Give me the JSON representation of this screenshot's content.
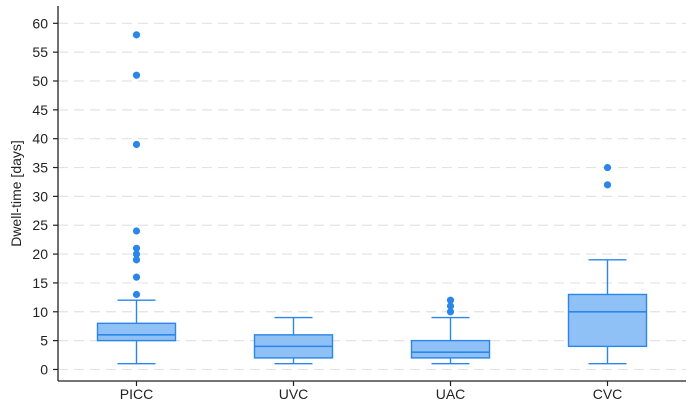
{
  "chart_data": {
    "type": "box",
    "ylabel": "Dwell-time [days]",
    "xlabel": "",
    "ylim": [
      -2,
      63
    ],
    "yticks": [
      0,
      5,
      10,
      15,
      20,
      25,
      30,
      35,
      40,
      45,
      50,
      55,
      60
    ],
    "grid": "horizontal dashed",
    "categories": [
      "PICC",
      "UVC",
      "UAC",
      "CVC"
    ],
    "boxes": [
      {
        "category": "PICC",
        "whisker_low": 1,
        "q1": 5,
        "median": 6,
        "q3": 8,
        "whisker_high": 12,
        "outliers": [
          13,
          16,
          19,
          20,
          21,
          24,
          39,
          51,
          58
        ]
      },
      {
        "category": "UVC",
        "whisker_low": 1,
        "q1": 2,
        "median": 4,
        "q3": 6,
        "whisker_high": 9,
        "outliers": []
      },
      {
        "category": "UAC",
        "whisker_low": 1,
        "q1": 2,
        "median": 3,
        "q3": 5,
        "whisker_high": 9,
        "outliers": [
          10,
          11,
          12
        ]
      },
      {
        "category": "CVC",
        "whisker_low": 1,
        "q1": 4,
        "median": 10,
        "q3": 13,
        "whisker_high": 19,
        "outliers": [
          32,
          35
        ]
      }
    ],
    "colors": {
      "box_fill": "#8fc1f7",
      "box_stroke": "#2a86e8",
      "outlier": "#2a86e8",
      "grid": "#e3e3e3",
      "axis": "#222222"
    }
  }
}
